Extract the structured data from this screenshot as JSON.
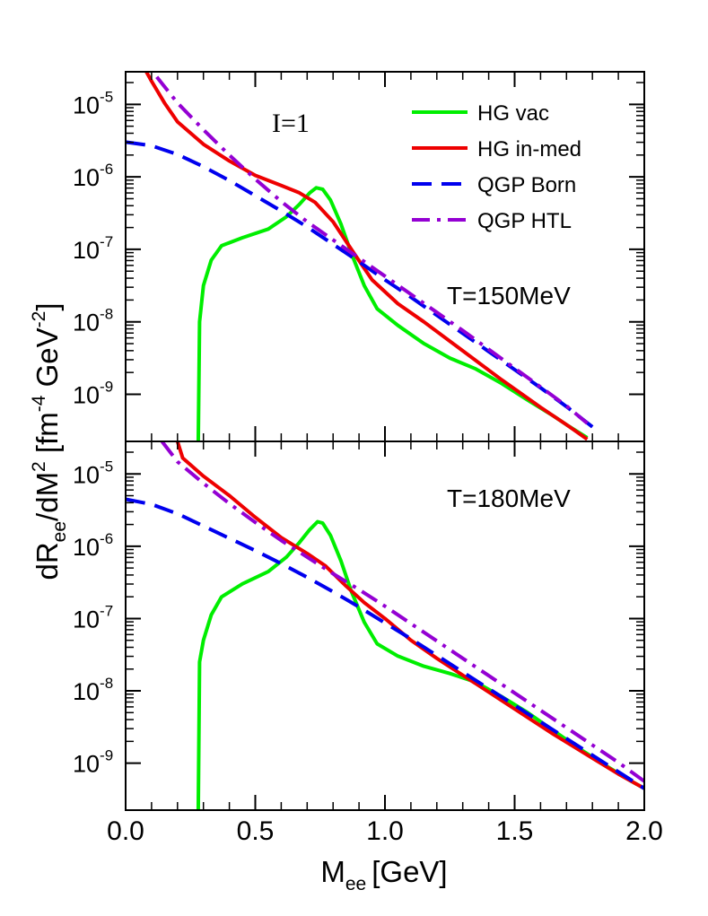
{
  "chart_data": {
    "type": "line",
    "layout": "two vertically stacked panels sharing x axis",
    "annotation": "I=1",
    "xlabel": {
      "main": "M",
      "sub": "ee",
      "unit": "[GeV]"
    },
    "ylabel": {
      "parts": [
        "dR",
        "ee",
        "/dM",
        "2",
        " [fm",
        "-4",
        " GeV",
        "-2",
        "]"
      ]
    },
    "xlim": [
      0.0,
      2.0
    ],
    "xticks": [
      "0.0",
      "0.5",
      "1.0",
      "1.5",
      "2.0"
    ],
    "yticks": [
      {
        "base": "10",
        "exp": "-9"
      },
      {
        "base": "10",
        "exp": "-8"
      },
      {
        "base": "10",
        "exp": "-7"
      },
      {
        "base": "10",
        "exp": "-6"
      },
      {
        "base": "10",
        "exp": "-5"
      }
    ],
    "legend": [
      {
        "name": "HG vac",
        "color": "#00ee00",
        "dash": "solid"
      },
      {
        "name": "HG in-med",
        "color": "#ee0000",
        "dash": "solid"
      },
      {
        "name": "QGP Born",
        "color": "#0000ee",
        "dash": "dashed"
      },
      {
        "name": "QGP HTL",
        "color": "#9400d3",
        "dash": "dashdot"
      }
    ],
    "panels": [
      {
        "temperature_label": "T=150MeV",
        "ylog_range": [
          -9.65,
          -4.55
        ],
        "series": [
          {
            "name": "HG vac",
            "points": [
              [
                0.28,
                -9.7
              ],
              [
                0.285,
                -8.0
              ],
              [
                0.3,
                -7.5
              ],
              [
                0.33,
                -7.15
              ],
              [
                0.37,
                -6.95
              ],
              [
                0.45,
                -6.84
              ],
              [
                0.55,
                -6.72
              ],
              [
                0.62,
                -6.55
              ],
              [
                0.67,
                -6.38
              ],
              [
                0.71,
                -6.22
              ],
              [
                0.735,
                -6.15
              ],
              [
                0.76,
                -6.17
              ],
              [
                0.79,
                -6.32
              ],
              [
                0.83,
                -6.65
              ],
              [
                0.87,
                -7.05
              ],
              [
                0.92,
                -7.5
              ],
              [
                0.97,
                -7.82
              ],
              [
                1.05,
                -8.05
              ],
              [
                1.15,
                -8.3
              ],
              [
                1.25,
                -8.5
              ],
              [
                1.35,
                -8.65
              ],
              [
                1.45,
                -8.85
              ],
              [
                1.55,
                -9.08
              ],
              [
                1.65,
                -9.3
              ],
              [
                1.7,
                -9.42
              ],
              [
                1.78,
                -9.6
              ]
            ]
          },
          {
            "name": "HG in-med",
            "points": [
              [
                0.08,
                -4.55
              ],
              [
                0.1,
                -4.68
              ],
              [
                0.15,
                -4.98
              ],
              [
                0.2,
                -5.24
              ],
              [
                0.3,
                -5.55
              ],
              [
                0.4,
                -5.78
              ],
              [
                0.5,
                -5.98
              ],
              [
                0.6,
                -6.12
              ],
              [
                0.67,
                -6.22
              ],
              [
                0.73,
                -6.35
              ],
              [
                0.8,
                -6.62
              ],
              [
                0.88,
                -7.05
              ],
              [
                0.95,
                -7.42
              ],
              [
                1.05,
                -7.75
              ],
              [
                1.15,
                -8.0
              ],
              [
                1.3,
                -8.4
              ],
              [
                1.45,
                -8.8
              ],
              [
                1.6,
                -9.18
              ],
              [
                1.7,
                -9.42
              ],
              [
                1.78,
                -9.62
              ]
            ]
          },
          {
            "name": "QGP Born",
            "points": [
              [
                0.0,
                -5.52
              ],
              [
                0.1,
                -5.57
              ],
              [
                0.2,
                -5.69
              ],
              [
                0.3,
                -5.86
              ],
              [
                0.4,
                -6.05
              ],
              [
                0.5,
                -6.26
              ],
              [
                0.6,
                -6.47
              ],
              [
                0.7,
                -6.69
              ],
              [
                0.8,
                -6.93
              ],
              [
                0.9,
                -7.17
              ],
              [
                1.0,
                -7.42
              ],
              [
                1.1,
                -7.66
              ],
              [
                1.2,
                -7.91
              ],
              [
                1.3,
                -8.16
              ],
              [
                1.4,
                -8.41
              ],
              [
                1.5,
                -8.66
              ],
              [
                1.6,
                -8.91
              ],
              [
                1.7,
                -9.17
              ],
              [
                1.8,
                -9.45
              ]
            ]
          },
          {
            "name": "QGP HTL",
            "points": [
              [
                0.12,
                -4.62
              ],
              [
                0.2,
                -4.98
              ],
              [
                0.3,
                -5.35
              ],
              [
                0.4,
                -5.7
              ],
              [
                0.5,
                -6.03
              ],
              [
                0.6,
                -6.34
              ],
              [
                0.7,
                -6.62
              ],
              [
                0.8,
                -6.87
              ],
              [
                0.9,
                -7.12
              ],
              [
                1.0,
                -7.37
              ],
              [
                1.1,
                -7.62
              ],
              [
                1.2,
                -7.87
              ],
              [
                1.3,
                -8.12
              ],
              [
                1.4,
                -8.38
              ],
              [
                1.5,
                -8.64
              ],
              [
                1.6,
                -8.9
              ],
              [
                1.7,
                -9.16
              ],
              [
                1.78,
                -9.4
              ]
            ]
          }
        ]
      },
      {
        "temperature_label": "T=180MeV",
        "ylog_range": [
          -9.65,
          -4.55
        ],
        "series": [
          {
            "name": "HG vac",
            "points": [
              [
                0.28,
                -9.7
              ],
              [
                0.285,
                -7.6
              ],
              [
                0.3,
                -7.3
              ],
              [
                0.33,
                -6.95
              ],
              [
                0.37,
                -6.7
              ],
              [
                0.45,
                -6.52
              ],
              [
                0.55,
                -6.35
              ],
              [
                0.62,
                -6.15
              ],
              [
                0.67,
                -5.95
              ],
              [
                0.71,
                -5.77
              ],
              [
                0.74,
                -5.66
              ],
              [
                0.76,
                -5.68
              ],
              [
                0.79,
                -5.85
              ],
              [
                0.83,
                -6.2
              ],
              [
                0.87,
                -6.62
              ],
              [
                0.92,
                -7.05
              ],
              [
                0.97,
                -7.35
              ],
              [
                1.05,
                -7.52
              ],
              [
                1.15,
                -7.66
              ],
              [
                1.25,
                -7.76
              ],
              [
                1.35,
                -7.88
              ],
              [
                1.45,
                -8.08
              ],
              [
                1.55,
                -8.3
              ],
              [
                1.65,
                -8.55
              ],
              [
                1.75,
                -8.8
              ],
              [
                1.85,
                -9.03
              ],
              [
                1.95,
                -9.25
              ],
              [
                2.0,
                -9.35
              ]
            ]
          },
          {
            "name": "HG in-med",
            "points": [
              [
                0.2,
                -4.55
              ],
              [
                0.22,
                -4.78
              ],
              [
                0.3,
                -5.03
              ],
              [
                0.4,
                -5.3
              ],
              [
                0.5,
                -5.6
              ],
              [
                0.6,
                -5.88
              ],
              [
                0.7,
                -6.1
              ],
              [
                0.77,
                -6.27
              ],
              [
                0.85,
                -6.55
              ],
              [
                0.92,
                -6.78
              ],
              [
                1.0,
                -7.0
              ],
              [
                1.1,
                -7.3
              ],
              [
                1.2,
                -7.55
              ],
              [
                1.35,
                -7.9
              ],
              [
                1.5,
                -8.25
              ],
              [
                1.65,
                -8.6
              ],
              [
                1.8,
                -8.93
              ],
              [
                1.9,
                -9.15
              ],
              [
                2.0,
                -9.35
              ]
            ]
          },
          {
            "name": "QGP Born",
            "points": [
              [
                0.0,
                -5.35
              ],
              [
                0.1,
                -5.42
              ],
              [
                0.2,
                -5.55
              ],
              [
                0.3,
                -5.72
              ],
              [
                0.4,
                -5.89
              ],
              [
                0.5,
                -6.06
              ],
              [
                0.6,
                -6.24
              ],
              [
                0.7,
                -6.43
              ],
              [
                0.8,
                -6.63
              ],
              [
                0.9,
                -6.84
              ],
              [
                1.0,
                -7.06
              ],
              [
                1.1,
                -7.28
              ],
              [
                1.2,
                -7.51
              ],
              [
                1.3,
                -7.74
              ],
              [
                1.4,
                -7.97
              ],
              [
                1.5,
                -8.2
              ],
              [
                1.6,
                -8.43
              ],
              [
                1.7,
                -8.66
              ],
              [
                1.8,
                -8.89
              ],
              [
                1.9,
                -9.12
              ],
              [
                2.0,
                -9.35
              ]
            ]
          },
          {
            "name": "QGP HTL",
            "points": [
              [
                0.14,
                -4.55
              ],
              [
                0.2,
                -4.83
              ],
              [
                0.3,
                -5.13
              ],
              [
                0.4,
                -5.41
              ],
              [
                0.5,
                -5.67
              ],
              [
                0.6,
                -5.92
              ],
              [
                0.7,
                -6.15
              ],
              [
                0.8,
                -6.38
              ],
              [
                0.9,
                -6.6
              ],
              [
                1.0,
                -6.83
              ],
              [
                1.1,
                -7.07
              ],
              [
                1.2,
                -7.31
              ],
              [
                1.3,
                -7.55
              ],
              [
                1.4,
                -7.79
              ],
              [
                1.5,
                -8.03
              ],
              [
                1.6,
                -8.27
              ],
              [
                1.7,
                -8.51
              ],
              [
                1.8,
                -8.75
              ],
              [
                1.9,
                -8.99
              ],
              [
                2.0,
                -9.25
              ]
            ]
          }
        ]
      }
    ]
  }
}
